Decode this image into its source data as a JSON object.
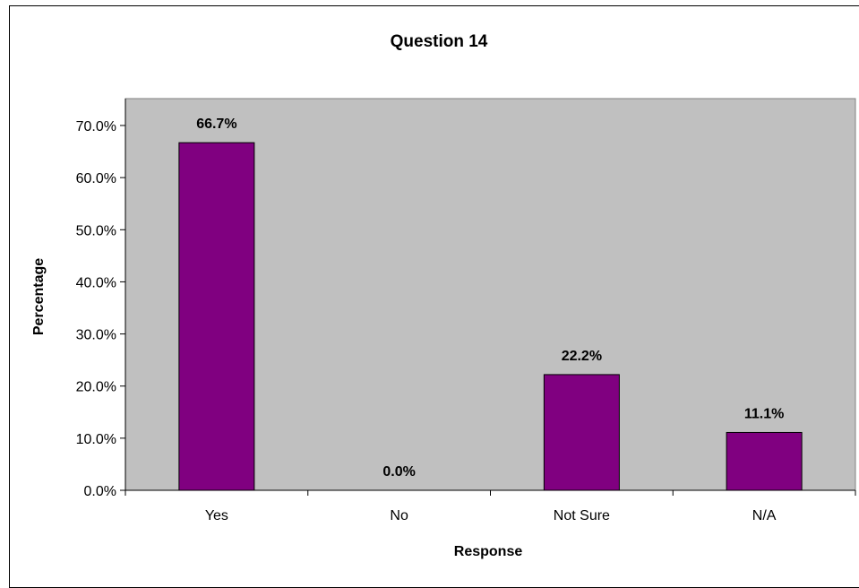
{
  "chart_data": {
    "type": "bar",
    "title": "Question 14",
    "xlabel": "Response",
    "ylabel": "Percentage",
    "categories": [
      "Yes",
      "No",
      "Not Sure",
      "N/A"
    ],
    "values": [
      66.7,
      0.0,
      22.2,
      11.1
    ],
    "data_labels": [
      "66.7%",
      "0.0%",
      "22.2%",
      "11.1%"
    ],
    "ylim": [
      0,
      70
    ],
    "yticks": [
      0,
      10,
      20,
      30,
      40,
      50,
      60,
      70
    ],
    "ytick_labels": [
      "0.0%",
      "10.0%",
      "20.0%",
      "30.0%",
      "40.0%",
      "50.0%",
      "60.0%",
      "70.0%"
    ],
    "grid": false,
    "legend": "none",
    "colors": {
      "bar_fill": "#800080",
      "plot_background": "#C0C0C0",
      "axis": "#000000"
    }
  }
}
